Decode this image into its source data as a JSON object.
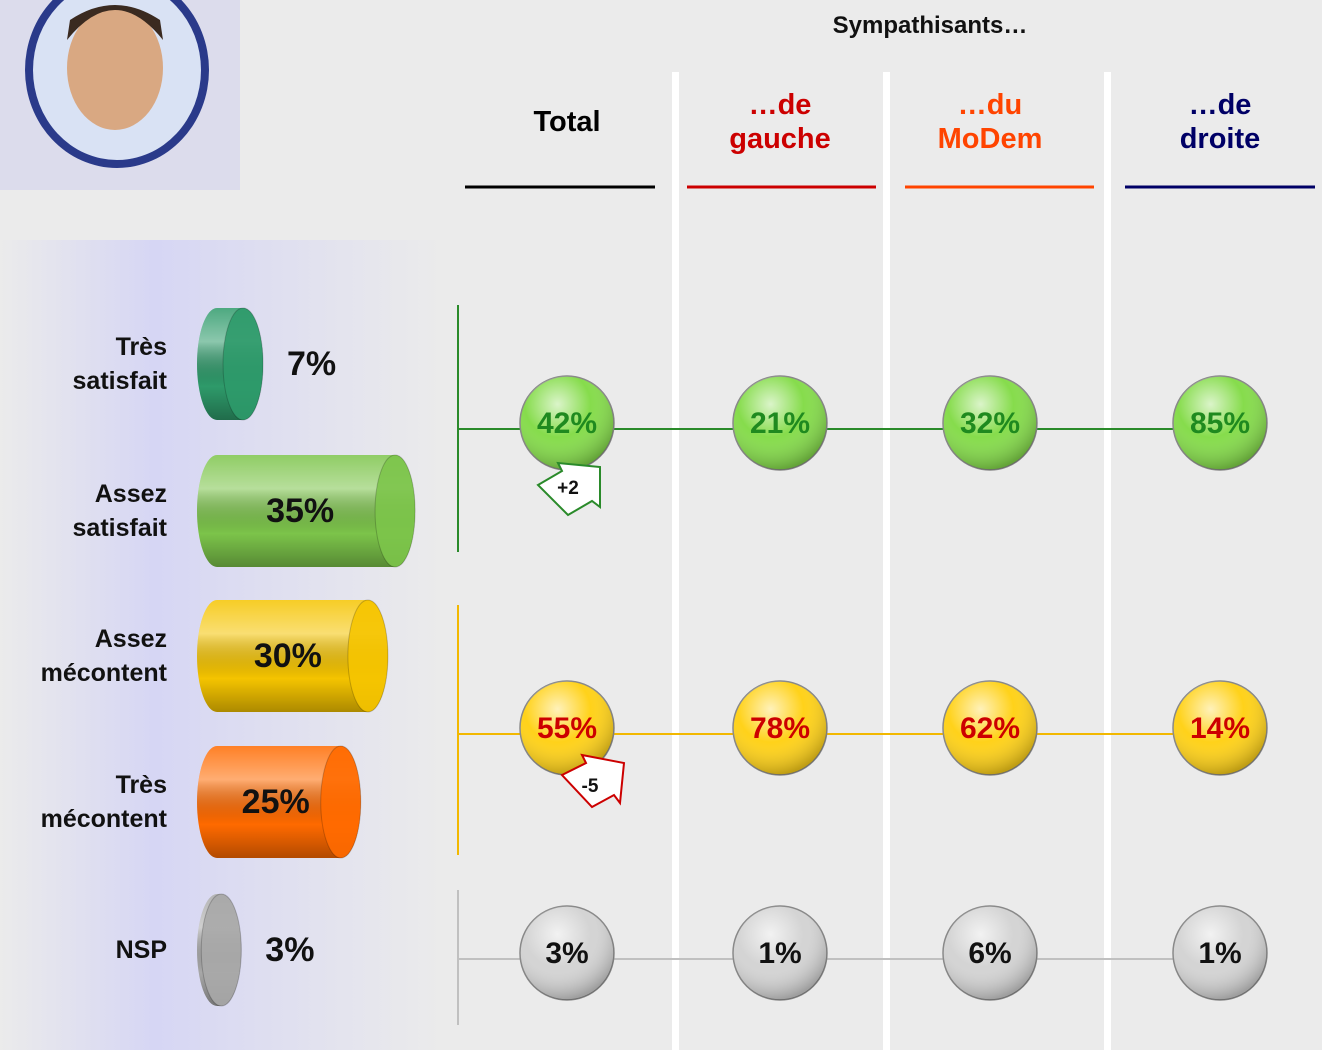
{
  "chart_data": [
    {
      "type": "bar",
      "categories": [
        "Très satisfait",
        "Assez satisfait",
        "Assez mécontent",
        "Très mécontent",
        "NSP"
      ],
      "values": [
        7,
        35,
        30,
        25,
        3
      ],
      "value_labels": [
        "7%",
        "35%",
        "30%",
        "25%",
        "3%"
      ],
      "colors": [
        "#2e9a6a",
        "#7cc44a",
        "#f5c400",
        "#ff6a00",
        "#a8a8a8"
      ]
    },
    {
      "type": "bubble",
      "title": "Sympathisants…",
      "columns": [
        "Total",
        "…de gauche",
        "…du MoDem",
        "…de droite"
      ],
      "column_colors": [
        "#000000",
        "#cc0000",
        "#ff4400",
        "#000066"
      ],
      "rows": [
        [
          42,
          21,
          32,
          85
        ],
        [
          55,
          78,
          62,
          14
        ],
        [
          3,
          1,
          6,
          1
        ]
      ],
      "row_labels": [
        [
          "42%",
          "21%",
          "32%",
          "85%"
        ],
        [
          "55%",
          "78%",
          "62%",
          "14%"
        ],
        [
          "3%",
          "1%",
          "6%",
          "1%"
        ]
      ],
      "row_colors": [
        "#86dc4c",
        "#ffd21a",
        "#d4d4d4"
      ],
      "text_colors": [
        "#1f8a1f",
        "#cc0000",
        "#111111"
      ],
      "line_colors": [
        "#2a8a2a",
        "#f2b800",
        "#c0c0c0"
      ],
      "changes": [
        {
          "value": 2,
          "label": "+2"
        },
        {
          "value": -5,
          "label": "-5"
        },
        null
      ]
    }
  ]
}
